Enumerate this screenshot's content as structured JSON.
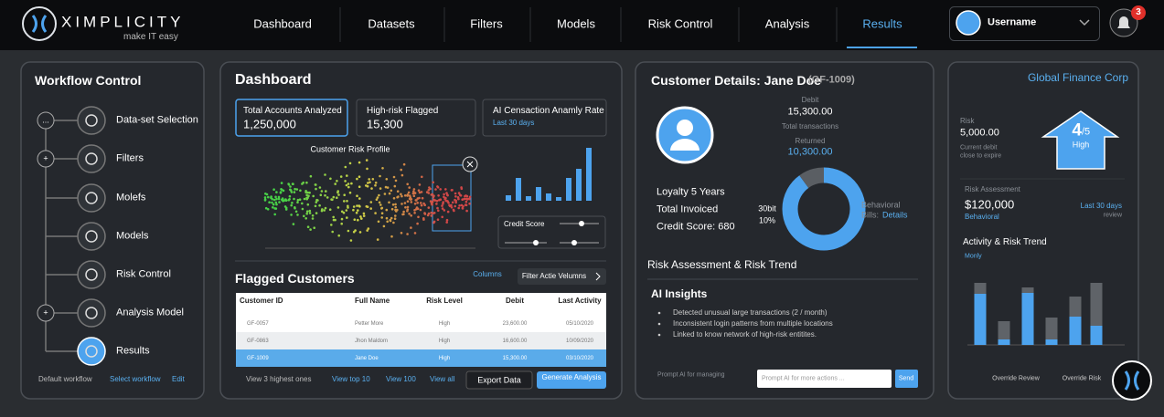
{
  "nav": {
    "brand": "XIMPLICITY",
    "tagline": "make IT easy",
    "items": [
      "Dashboard",
      "Datasets",
      "Filters",
      "Models",
      "Risk Control",
      "Analysis",
      "Results"
    ],
    "active_item": 6,
    "user": "Username",
    "notifications": 3
  },
  "workflow": {
    "title": "Workflow Control",
    "steps": [
      {
        "label": "Data-set Selection",
        "marker": "..."
      },
      {
        "label": "Filters",
        "marker": "+"
      },
      {
        "label": "Molefs"
      },
      {
        "label": "Models"
      },
      {
        "label": "Risk Control"
      },
      {
        "label": "Analysis Model",
        "marker": "+"
      },
      {
        "label": "Results"
      }
    ],
    "footer": [
      "Default workflow",
      "Select workflow",
      "Edit"
    ]
  },
  "dashboard": {
    "title": "Dashboard",
    "kpis": [
      {
        "label": "Total Accounts Analyzed",
        "value": "1,250,000"
      },
      {
        "label": "High-risk Flagged",
        "value": "15,300"
      },
      {
        "label": "AI Censaction Anamly Rate",
        "note": "Last 30 days"
      }
    ],
    "scatter_title": "Customer Risk Profile",
    "mini_bars": {
      "type": "bar",
      "values": [
        6,
        25,
        5,
        15,
        8,
        4,
        25,
        35,
        58
      ],
      "ylim": [
        0,
        60
      ],
      "color": "#4da3ee"
    },
    "slider_label": "Credit Score",
    "flagged": {
      "title": "Flagged Customers",
      "columns_link": "Columns",
      "filter_button": "Filter Actie Velumns",
      "headers": [
        "Customer ID",
        "Full Name",
        "Risk Level",
        "Debit",
        "Last Activity"
      ],
      "rows": [
        [
          "GF-0057",
          "Petter More",
          "High",
          "23,600.00",
          "05/10/2020"
        ],
        [
          "GF-0863",
          "Jhon Maldom",
          "High",
          "16,600.00",
          "10/09/2020"
        ],
        [
          "GF-1009",
          "Jane Doe",
          "High",
          "15,300.00",
          "03/10/2020"
        ]
      ],
      "selected_row": 2,
      "footer": [
        "View 3 highest ones",
        "View top 10",
        "View 100",
        "View all"
      ],
      "export": "Export Data",
      "generate": "Generate Analysis"
    }
  },
  "customer": {
    "title": "Customer Details: Jane Doe",
    "id": "(GF-1009)",
    "debit_label": "Debit",
    "debit": "15,300.00",
    "transactions_label": "Total transactions",
    "returned_label": "Returned",
    "returned": "10,300.00",
    "facts": [
      "Loyalty 5 Years",
      "Total Invoiced",
      "Credit Score: 680"
    ],
    "donut": {
      "type": "pie",
      "values": [
        90,
        10
      ],
      "colors": [
        "#4da3ee",
        "#5a5e63"
      ]
    },
    "donut_note": [
      "30bit",
      "10%"
    ],
    "behavioral": "Behavioral",
    "bills": "Bills:",
    "details": "Details",
    "section": "Risk Assessment & Risk Trend",
    "insights_title": "AI Insights",
    "insights": [
      "Detected unusual large transactions (2 / month)",
      "Inconsistent login patterns from multiple locations",
      "Linked to know network of high-risk entitites."
    ],
    "prompt_label": "Prompt AI for managing",
    "prompt_placeholder": "Prompt AI for more actions ...",
    "send": "Send"
  },
  "summary": {
    "company": "Global Finance Corp",
    "risk_label": "Risk",
    "risk": "5,000.00",
    "risk_note": [
      "Current debit",
      "close to expire"
    ],
    "score": "4",
    "score_max": "/5",
    "score_level": "High",
    "assessment_label": "Risk Assessment",
    "assessment": "$120,000",
    "assessment_note": "Behavioral",
    "period": "Last 30 days",
    "period_note": "review",
    "trend": {
      "type": "bar",
      "stacked": true,
      "title": "Activity & Risk Trend",
      "subtitle": "Monly",
      "ylim": [
        0,
        70
      ],
      "series": [
        {
          "color": "#4da3ee",
          "values": [
            56,
            6,
            57,
            6,
            31,
            21
          ]
        },
        {
          "color": "#5f6368",
          "values": [
            12,
            20,
            6,
            24,
            22,
            47
          ]
        }
      ]
    },
    "buttons": [
      "Override Review",
      "Override Risk"
    ]
  }
}
